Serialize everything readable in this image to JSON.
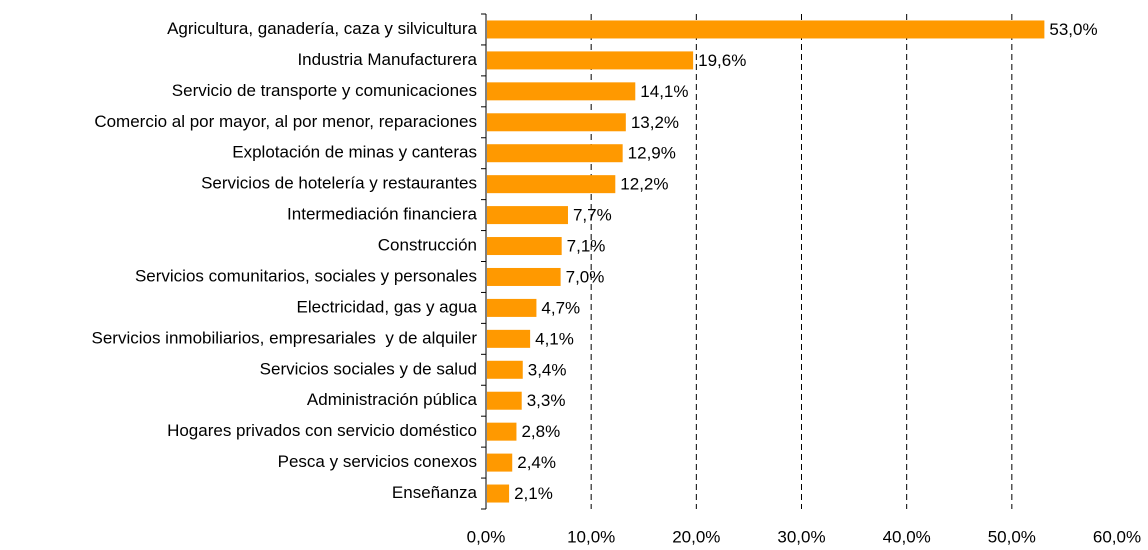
{
  "chart_data": {
    "type": "hbar",
    "categories": [
      "Agricultura, ganadería, caza y silvicultura",
      "Industria Manufacturera",
      "Servicio de transporte y comunicaciones",
      "Comercio al por mayor, al por menor, reparaciones",
      "Explotación de minas y canteras",
      "Servicios de hotelería y restaurantes",
      "Intermediación financiera",
      "Construcción",
      "Servicios comunitarios, sociales y personales",
      "Electricidad, gas y agua",
      "Servicios inmobiliarios, empresariales  y de alquiler",
      "Servicios sociales y de salud",
      "Administración pública",
      "Hogares privados con servicio doméstico",
      "Pesca y servicios conexos",
      "Enseñanza"
    ],
    "values": [
      53.0,
      19.6,
      14.1,
      13.2,
      12.9,
      12.2,
      7.7,
      7.1,
      7.0,
      4.7,
      4.1,
      3.4,
      3.3,
      2.8,
      2.4,
      2.1
    ],
    "value_labels": [
      "53,0%",
      "19,6%",
      "14,1%",
      "13,2%",
      "12,9%",
      "12,2%",
      "7,7%",
      "7,1%",
      "7,0%",
      "4,7%",
      "4,1%",
      "3,4%",
      "3,3%",
      "2,8%",
      "2,4%",
      "2,1%"
    ],
    "color": "#ff9900",
    "xlim": [
      0,
      60
    ],
    "xticks": [
      {
        "value": 0,
        "label": "0,0%"
      },
      {
        "value": 10,
        "label": "10,0%"
      },
      {
        "value": 20,
        "label": "20,0%"
      },
      {
        "value": 30,
        "label": "30,0%"
      },
      {
        "value": 40,
        "label": "40,0%"
      },
      {
        "value": 50,
        "label": "50,0%"
      },
      {
        "value": 60,
        "label": "60,0%"
      }
    ],
    "grid": true
  }
}
